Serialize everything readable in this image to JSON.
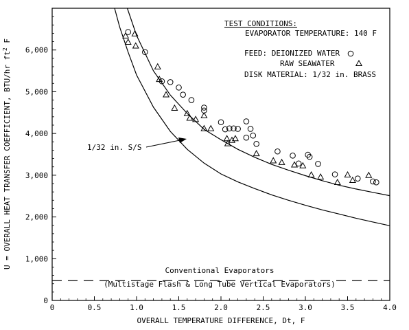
{
  "chart_data": {
    "type": "scatter",
    "xlabel": "OVERALL TEMPERATURE DIFFERENCE, Dt, F",
    "ylabel": "U = OVERALL HEAT TRANSFER COEFFICIENT, BTU/hr ft",
    "ylabel_sup": "2",
    "ylabel_tail": " F",
    "xlim": [
      0,
      4.0
    ],
    "ylim": [
      0,
      7000
    ],
    "x_ticks": [
      0,
      0.5,
      1.0,
      1.5,
      2.0,
      2.5,
      3.0,
      3.5,
      4.0
    ],
    "x_tick_labels": [
      "0",
      "0.5",
      "1.0",
      "1.5",
      "2.0",
      "2.5",
      "3.0",
      "3.5",
      "4.0"
    ],
    "y_ticks": [
      0,
      1000,
      2000,
      3000,
      4000,
      5000,
      6000
    ],
    "y_tick_labels": [
      "0",
      "1,000",
      "2,000",
      "3,000",
      "4,000",
      "5,000",
      "6,000"
    ],
    "grid": false,
    "test_conditions": {
      "heading": "TEST CONDITIONS:",
      "line1": "EVAPORATOR TEMPERATURE: 140 F",
      "line2": "FEED: DEIONIZED WATER",
      "line3": "RAW SEAWATER",
      "line4": "DISK MATERIAL: 1/32 in. BRASS"
    },
    "curve_annotation": "1/32 in. S/S",
    "conventional": {
      "value": 480,
      "label1": "Conventional Evaporators",
      "label2": "(Multistage Flash & Long Tube Vertical Evaporators)"
    },
    "series": [
      {
        "name": "DEIONIZED WATER",
        "marker": "circle",
        "points": [
          [
            0.9,
            6430
          ],
          [
            1.1,
            5950
          ],
          [
            1.3,
            5250
          ],
          [
            1.4,
            5230
          ],
          [
            1.5,
            5100
          ],
          [
            1.55,
            4930
          ],
          [
            1.65,
            4800
          ],
          [
            1.8,
            4620
          ],
          [
            1.8,
            4550
          ],
          [
            2.0,
            4270
          ],
          [
            2.05,
            4100
          ],
          [
            2.1,
            4120
          ],
          [
            2.15,
            4120
          ],
          [
            2.2,
            4110
          ],
          [
            2.3,
            4290
          ],
          [
            2.3,
            3900
          ],
          [
            2.35,
            4110
          ],
          [
            2.38,
            3950
          ],
          [
            2.42,
            3750
          ],
          [
            2.67,
            3570
          ],
          [
            2.85,
            3470
          ],
          [
            2.92,
            3280
          ],
          [
            3.03,
            3490
          ],
          [
            3.05,
            3440
          ],
          [
            3.15,
            3270
          ],
          [
            3.35,
            3020
          ],
          [
            3.62,
            2920
          ],
          [
            3.8,
            2850
          ],
          [
            3.84,
            2830
          ]
        ]
      },
      {
        "name": "RAW SEAWATER",
        "marker": "triangle",
        "points": [
          [
            0.87,
            6340
          ],
          [
            0.9,
            6190
          ],
          [
            0.98,
            6390
          ],
          [
            0.99,
            6100
          ],
          [
            1.25,
            5600
          ],
          [
            1.27,
            5300
          ],
          [
            1.35,
            4930
          ],
          [
            1.45,
            4610
          ],
          [
            1.6,
            4480
          ],
          [
            1.63,
            4370
          ],
          [
            1.7,
            4340
          ],
          [
            1.8,
            4430
          ],
          [
            1.8,
            4120
          ],
          [
            1.88,
            4120
          ],
          [
            2.07,
            3880
          ],
          [
            2.08,
            3760
          ],
          [
            2.13,
            3840
          ],
          [
            2.17,
            3880
          ],
          [
            2.42,
            3520
          ],
          [
            2.62,
            3350
          ],
          [
            2.72,
            3310
          ],
          [
            2.87,
            3250
          ],
          [
            2.97,
            3230
          ],
          [
            3.07,
            3010
          ],
          [
            3.18,
            2960
          ],
          [
            3.38,
            2830
          ],
          [
            3.5,
            3010
          ],
          [
            3.56,
            2880
          ],
          [
            3.75,
            3000
          ]
        ]
      }
    ],
    "curves": [
      {
        "name": "upper",
        "points": [
          [
            0.89,
            7000
          ],
          [
            1.0,
            6350
          ],
          [
            1.2,
            5500
          ],
          [
            1.4,
            4920
          ],
          [
            1.6,
            4480
          ],
          [
            1.8,
            4100
          ],
          [
            2.0,
            3850
          ],
          [
            2.2,
            3620
          ],
          [
            2.4,
            3430
          ],
          [
            2.6,
            3260
          ],
          [
            2.8,
            3120
          ],
          [
            3.0,
            2990
          ],
          [
            3.2,
            2870
          ],
          [
            3.4,
            2760
          ],
          [
            3.6,
            2670
          ],
          [
            3.8,
            2590
          ],
          [
            4.0,
            2510
          ]
        ]
      },
      {
        "name": "lower",
        "points": [
          [
            0.74,
            7000
          ],
          [
            0.8,
            6550
          ],
          [
            0.9,
            5950
          ],
          [
            1.0,
            5400
          ],
          [
            1.2,
            4630
          ],
          [
            1.4,
            4050
          ],
          [
            1.6,
            3620
          ],
          [
            1.8,
            3290
          ],
          [
            2.0,
            3030
          ],
          [
            2.2,
            2840
          ],
          [
            2.4,
            2680
          ],
          [
            2.6,
            2530
          ],
          [
            2.8,
            2400
          ],
          [
            3.0,
            2280
          ],
          [
            3.2,
            2170
          ],
          [
            3.4,
            2070
          ],
          [
            3.6,
            1970
          ],
          [
            3.8,
            1880
          ],
          [
            4.0,
            1790
          ]
        ]
      }
    ]
  }
}
